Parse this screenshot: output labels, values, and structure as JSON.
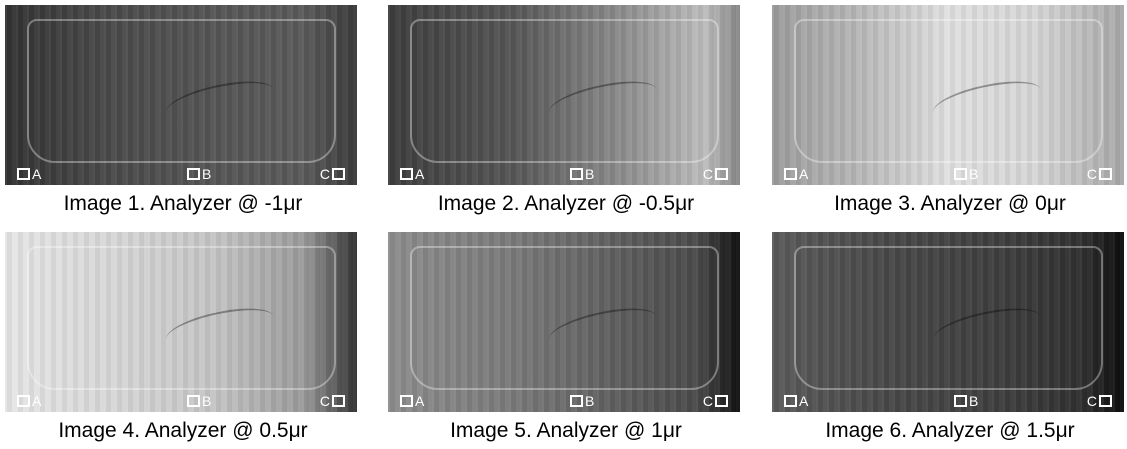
{
  "images": [
    {
      "caption": "Image 1. Analyzer @  -1μr",
      "labels": [
        "A",
        "B",
        "C"
      ]
    },
    {
      "caption": "Image 2. Analyzer @  -0.5μr",
      "labels": [
        "A",
        "B",
        "C"
      ]
    },
    {
      "caption": "Image 3. Analyzer @ 0μr",
      "labels": [
        "A",
        "B",
        "C"
      ]
    },
    {
      "caption": "Image 4. Analyzer @ 0.5μr",
      "labels": [
        "A",
        "B",
        "C"
      ]
    },
    {
      "caption": "Image 5. Analyzer @ 1μr",
      "labels": [
        "A",
        "B",
        "C"
      ]
    },
    {
      "caption": "Image 6. Analyzer @ 1.5μr",
      "labels": [
        "A",
        "B",
        "C"
      ]
    }
  ]
}
